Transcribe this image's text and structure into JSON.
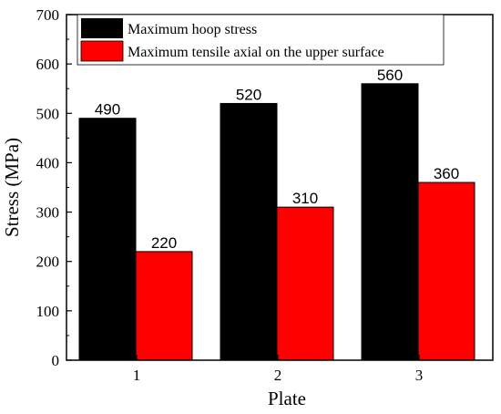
{
  "chart_data": {
    "type": "bar",
    "categories": [
      "1",
      "2",
      "3"
    ],
    "series": [
      {
        "name": "Maximum hoop stress",
        "values": [
          490,
          520,
          560
        ],
        "color": "#000000"
      },
      {
        "name": "Maximum tensile axial on the upper surface",
        "values": [
          220,
          310,
          360
        ],
        "color": "#ff0000"
      }
    ],
    "title": "",
    "xlabel": "Plate",
    "ylabel": "Stress (MPa)",
    "ylim": [
      0,
      700
    ],
    "yticks": [
      0,
      100,
      200,
      300,
      400,
      500,
      600,
      700
    ],
    "grid": false,
    "legend_position": "top-right",
    "data_labels": true
  }
}
